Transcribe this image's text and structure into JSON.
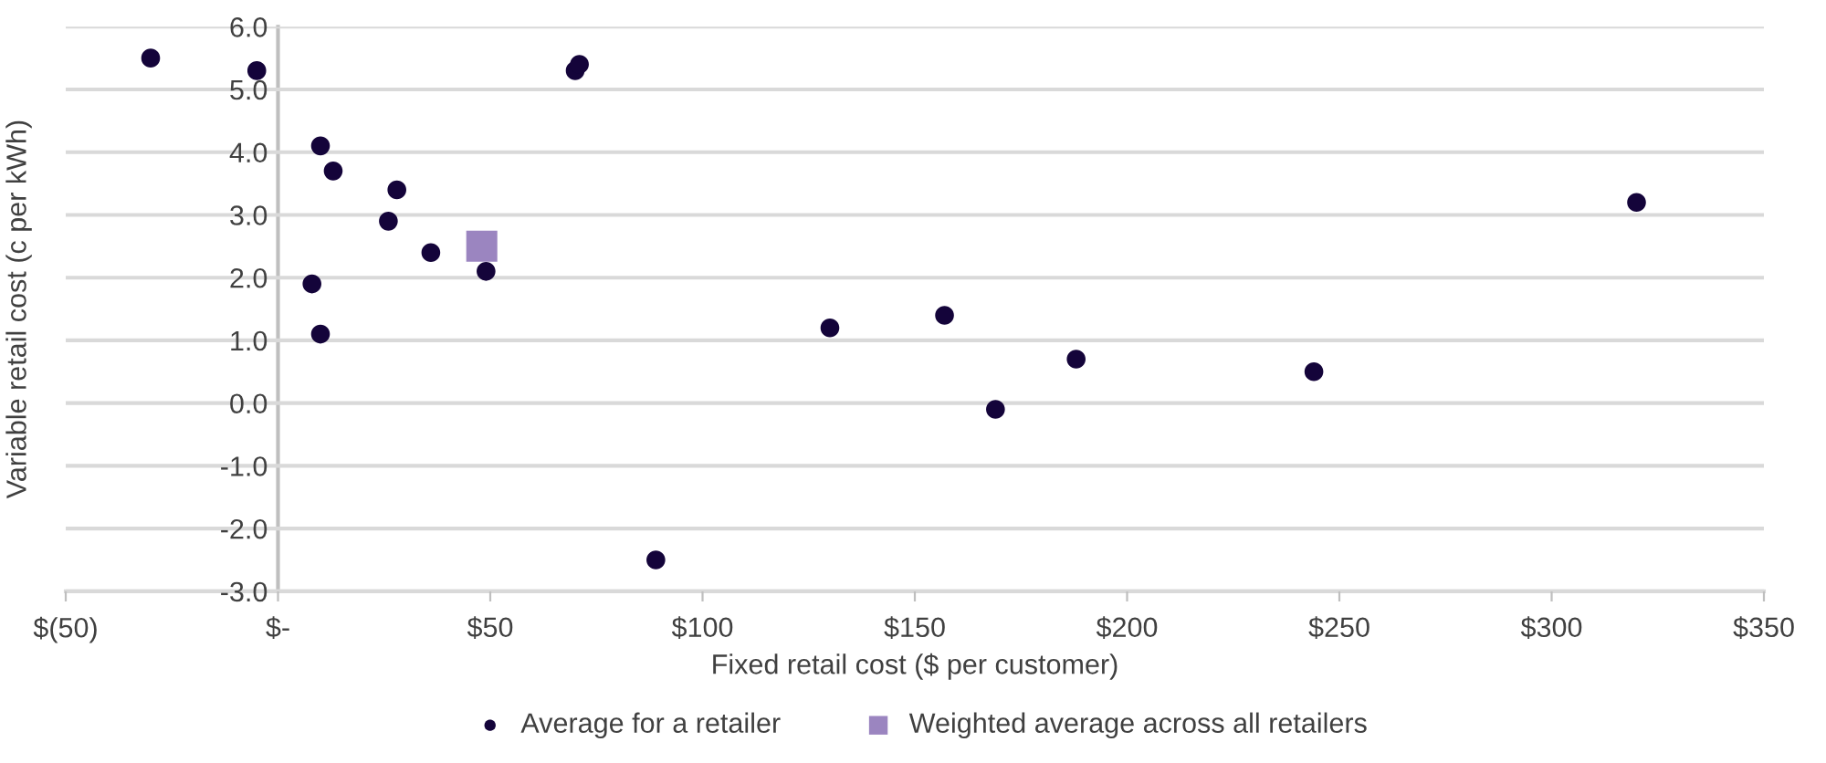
{
  "chart_data": {
    "type": "scatter",
    "xlabel": "Fixed retail cost ($ per customer)",
    "ylabel": "Variable retail cost (c per kWh)",
    "series": [
      {
        "name": "Average for a retailer",
        "color": "#14043a",
        "marker": "circle",
        "x": [
          -30,
          -5,
          10,
          13,
          28,
          26,
          36,
          8,
          10,
          49,
          70,
          71,
          89,
          130,
          157,
          169,
          188,
          244,
          320
        ],
        "values": [
          5.5,
          5.3,
          4.1,
          3.7,
          3.4,
          2.9,
          2.4,
          1.9,
          1.1,
          2.1,
          5.3,
          5.4,
          -2.5,
          1.2,
          1.4,
          -0.1,
          0.7,
          0.5,
          3.2
        ]
      },
      {
        "name": "Weighted average across all retailers",
        "color": "#9b85c0",
        "marker": "square",
        "x": [
          48
        ],
        "values": [
          2.5
        ]
      }
    ],
    "xlim": [
      -50,
      350
    ],
    "xticks": [
      {
        "value": -50,
        "label": "$(50)"
      },
      {
        "value": 0,
        "label": "$-"
      },
      {
        "value": 50,
        "label": "$50"
      },
      {
        "value": 100,
        "label": "$100"
      },
      {
        "value": 150,
        "label": "$150"
      },
      {
        "value": 200,
        "label": "$200"
      },
      {
        "value": 250,
        "label": "$250"
      },
      {
        "value": 300,
        "label": "$300"
      },
      {
        "value": 350,
        "label": "$350"
      }
    ],
    "ylim": [
      -3,
      6
    ],
    "yticks": [
      {
        "value": -3,
        "label": "-3.0"
      },
      {
        "value": -2,
        "label": "-2.0"
      },
      {
        "value": -1,
        "label": "-1.0"
      },
      {
        "value": 0,
        "label": "0.0"
      },
      {
        "value": 1,
        "label": "1.0"
      },
      {
        "value": 2,
        "label": "2.0"
      },
      {
        "value": 3,
        "label": "3.0"
      },
      {
        "value": 4,
        "label": "4.0"
      },
      {
        "value": 5,
        "label": "5.0"
      },
      {
        "value": 6,
        "label": "6.0"
      }
    ],
    "grid": "y",
    "legend": "bottom"
  }
}
